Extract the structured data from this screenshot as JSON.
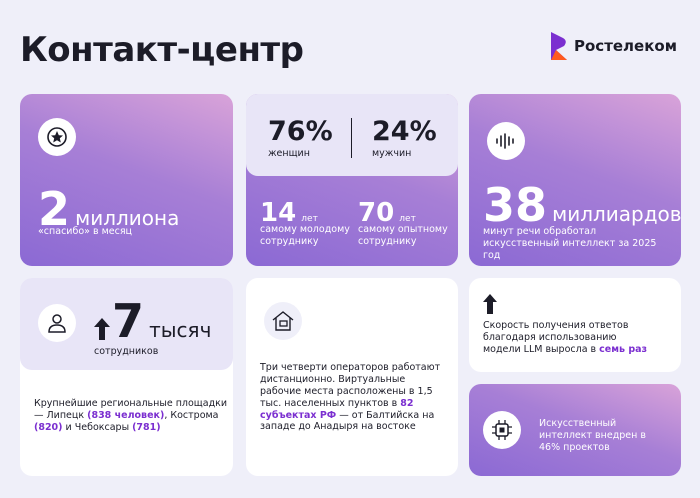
{
  "header": {
    "title": "Контакт-центр",
    "logo": "Ростелеком"
  },
  "cards": [
    {
      "value": "2",
      "unit": "миллиона",
      "caption": "«спасибо» в месяц"
    },
    {
      "stats": [
        {
          "value": "76%",
          "label": "женщин"
        },
        {
          "value": "24%",
          "label": "мужчин"
        },
        {
          "value": "14",
          "unit": "лет",
          "label": "самому молодому сотруднику"
        },
        {
          "value": "70",
          "unit": "лет",
          "label": "самому опытному сотруднику"
        }
      ]
    },
    {
      "value": "38",
      "unit": "миллиардов",
      "caption": "минут речи обработал искусственный интеллект за 2025 год"
    },
    {
      "value": "7",
      "unit": "тысяч",
      "caption": "сотрудников",
      "text": [
        "Крупнейшие региональные площадки — Липецк ",
        "(838 человек)",
        ", Кострома ",
        "(820)",
        " и Чебоксары ",
        "(781)"
      ]
    },
    {
      "text": [
        "Три четверти операторов работают дистанционно. Виртуальные рабочие места расположены в 1,5 тыс. населенных пунктов в ",
        "82 субъектах РФ",
        " — от Балтийска на западе до Анадыря на востоке"
      ]
    },
    {
      "text": [
        "Скорость получения ответов благодаря использованию модели LLM выросла в ",
        "семь раз"
      ]
    },
    {
      "text": "Искусственный интеллект внедрен в 46% проектов"
    }
  ]
}
